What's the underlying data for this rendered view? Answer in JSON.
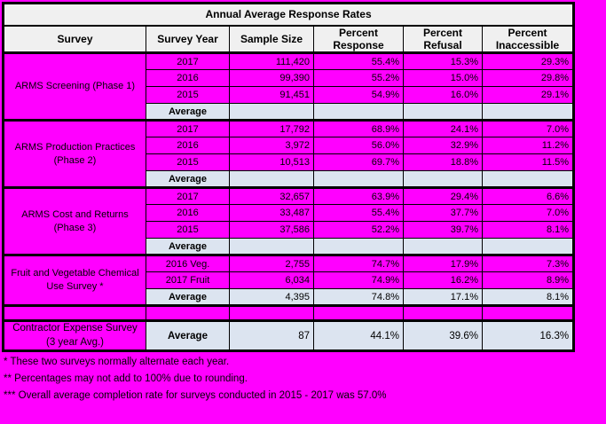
{
  "page": {
    "background_color": "#ff00ff",
    "colors": {
      "magenta": "#ff00ff",
      "average_row_bg": "#dce4f0",
      "header_bg": "#f0f0f0",
      "border": "#000000"
    }
  },
  "table": {
    "title": "Annual Average Response Rates",
    "columns": [
      "Survey",
      "Survey Year",
      "Sample Size",
      "Percent Response",
      "Percent Refusal",
      "Percent Inaccessible"
    ],
    "groups": [
      {
        "survey": "ARMS Screening (Phase 1)",
        "rows": [
          {
            "year": "2017",
            "sample_size": "111,420",
            "percent_response": "55.4%",
            "percent_refusal": "15.3%",
            "percent_inaccessible": "29.3%"
          },
          {
            "year": "2016",
            "sample_size": "99,390",
            "percent_response": "55.2%",
            "percent_refusal": "15.0%",
            "percent_inaccessible": "29.8%"
          },
          {
            "year": "2015",
            "sample_size": "91,451",
            "percent_response": "54.9%",
            "percent_refusal": "16.0%",
            "percent_inaccessible": "29.1%"
          }
        ],
        "average": {
          "label": "Average",
          "sample_size": "",
          "percent_response": "",
          "percent_refusal": "",
          "percent_inaccessible": ""
        }
      },
      {
        "survey": "ARMS Production Practices (Phase 2)",
        "rows": [
          {
            "year": "2017",
            "sample_size": "17,792",
            "percent_response": "68.9%",
            "percent_refusal": "24.1%",
            "percent_inaccessible": "7.0%"
          },
          {
            "year": "2016",
            "sample_size": "3,972",
            "percent_response": "56.0%",
            "percent_refusal": "32.9%",
            "percent_inaccessible": "11.2%"
          },
          {
            "year": "2015",
            "sample_size": "10,513",
            "percent_response": "69.7%",
            "percent_refusal": "18.8%",
            "percent_inaccessible": "11.5%"
          }
        ],
        "average": {
          "label": "Average",
          "sample_size": "",
          "percent_response": "",
          "percent_refusal": "",
          "percent_inaccessible": ""
        }
      },
      {
        "survey": "ARMS Cost and Returns (Phase 3)",
        "rows": [
          {
            "year": "2017",
            "sample_size": "32,657",
            "percent_response": "63.9%",
            "percent_refusal": "29.4%",
            "percent_inaccessible": "6.6%"
          },
          {
            "year": "2016",
            "sample_size": "33,487",
            "percent_response": "55.4%",
            "percent_refusal": "37.7%",
            "percent_inaccessible": "7.0%"
          },
          {
            "year": "2015",
            "sample_size": "37,586",
            "percent_response": "52.2%",
            "percent_refusal": "39.7%",
            "percent_inaccessible": "8.1%"
          }
        ],
        "average": {
          "label": "Average",
          "sample_size": "",
          "percent_response": "",
          "percent_refusal": "",
          "percent_inaccessible": ""
        }
      },
      {
        "survey": "Fruit and Vegetable Chemical Use Survey *",
        "rows": [
          {
            "year": "2016 Veg.",
            "sample_size": "2,755",
            "percent_response": "74.7%",
            "percent_refusal": "17.9%",
            "percent_inaccessible": "7.3%"
          },
          {
            "year": "2017 Fruit",
            "sample_size": "6,034",
            "percent_response": "74.9%",
            "percent_refusal": "16.2%",
            "percent_inaccessible": "8.9%"
          }
        ],
        "average": {
          "label": "Average",
          "sample_size": "4,395",
          "percent_response": "74.8%",
          "percent_refusal": "17.1%",
          "percent_inaccessible": "8.1%"
        }
      }
    ],
    "spacer_row_after_groups": true,
    "final_group": {
      "survey": "Contractor Expense Survey (3 year Avg.)",
      "average": {
        "label": "Average",
        "sample_size": "87",
        "percent_response": "44.1%",
        "percent_refusal": "39.6%",
        "percent_inaccessible": "16.3%"
      }
    }
  },
  "footnotes": [
    "* These two surveys normally alternate each year.",
    "** Percentages may not add to 100% due to rounding.",
    "*** Overall average completion rate for surveys conducted in 2015 - 2017 was 57.0%"
  ]
}
